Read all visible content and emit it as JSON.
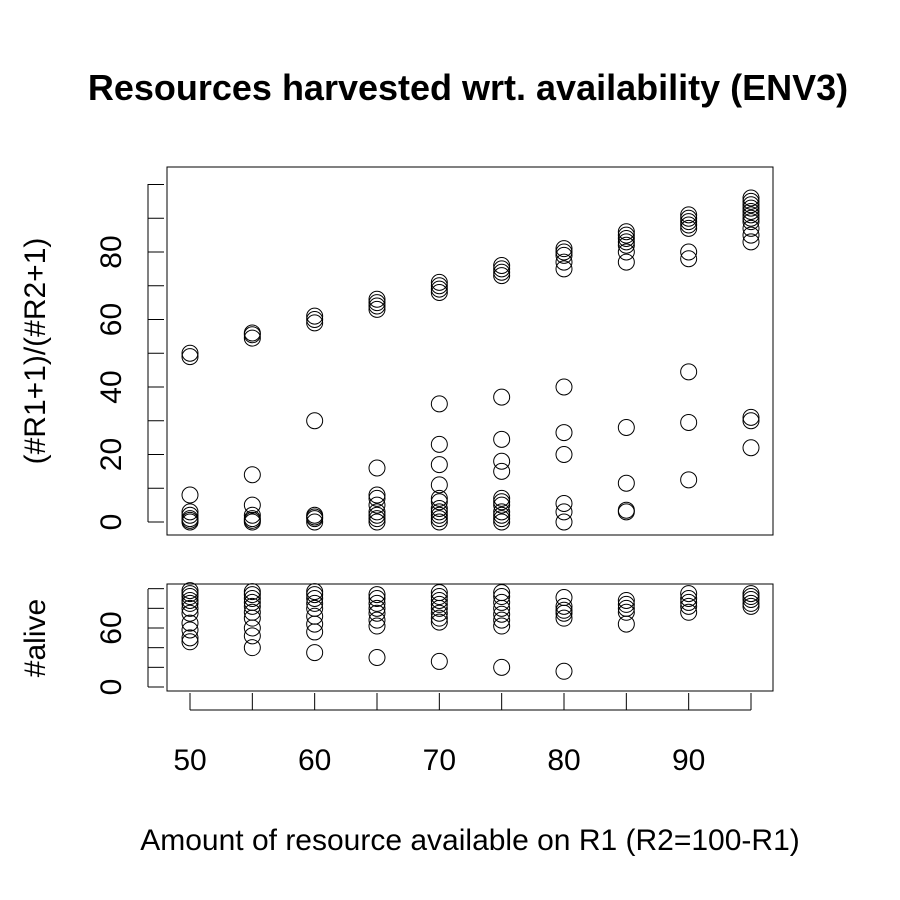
{
  "chart_data": {
    "type": "scatter",
    "title": "Resources harvested wrt. availability (ENV3)",
    "xlabel": "Amount of resource available on R1 (R2=100-R1)",
    "x_ticks": [
      50,
      60,
      70,
      80,
      90
    ],
    "panels": [
      {
        "name": "ratio",
        "ylabel": "(#R1+1)/(#R2+1)",
        "ylim": [
          -4,
          105
        ],
        "y_ticks": [
          0,
          20,
          40,
          60,
          80
        ],
        "y_minor_ticks": [
          10,
          30,
          50,
          70,
          90,
          100
        ],
        "points": [
          {
            "x": 50,
            "y": 49
          },
          {
            "x": 50,
            "y": 50
          },
          {
            "x": 50,
            "y": 8
          },
          {
            "x": 50,
            "y": 3
          },
          {
            "x": 50,
            "y": 2
          },
          {
            "x": 50,
            "y": 1
          },
          {
            "x": 50,
            "y": 0.5
          },
          {
            "x": 50,
            "y": 0
          },
          {
            "x": 55,
            "y": 54.5
          },
          {
            "x": 55,
            "y": 55.5
          },
          {
            "x": 55,
            "y": 56
          },
          {
            "x": 55,
            "y": 14
          },
          {
            "x": 55,
            "y": 5
          },
          {
            "x": 55,
            "y": 2
          },
          {
            "x": 55,
            "y": 1
          },
          {
            "x": 55,
            "y": 0.5
          },
          {
            "x": 55,
            "y": 0
          },
          {
            "x": 60,
            "y": 59
          },
          {
            "x": 60,
            "y": 60
          },
          {
            "x": 60,
            "y": 61
          },
          {
            "x": 60,
            "y": 30
          },
          {
            "x": 60,
            "y": 2
          },
          {
            "x": 60,
            "y": 1.5
          },
          {
            "x": 60,
            "y": 1
          },
          {
            "x": 60,
            "y": 0
          },
          {
            "x": 65,
            "y": 63
          },
          {
            "x": 65,
            "y": 64
          },
          {
            "x": 65,
            "y": 65
          },
          {
            "x": 65,
            "y": 66
          },
          {
            "x": 65,
            "y": 16
          },
          {
            "x": 65,
            "y": 8
          },
          {
            "x": 65,
            "y": 7
          },
          {
            "x": 65,
            "y": 5
          },
          {
            "x": 65,
            "y": 3
          },
          {
            "x": 65,
            "y": 2
          },
          {
            "x": 65,
            "y": 1
          },
          {
            "x": 65,
            "y": 0
          },
          {
            "x": 70,
            "y": 68
          },
          {
            "x": 70,
            "y": 69
          },
          {
            "x": 70,
            "y": 70
          },
          {
            "x": 70,
            "y": 71
          },
          {
            "x": 70,
            "y": 35
          },
          {
            "x": 70,
            "y": 23
          },
          {
            "x": 70,
            "y": 17
          },
          {
            "x": 70,
            "y": 11
          },
          {
            "x": 70,
            "y": 7
          },
          {
            "x": 70,
            "y": 6
          },
          {
            "x": 70,
            "y": 4
          },
          {
            "x": 70,
            "y": 3
          },
          {
            "x": 70,
            "y": 2
          },
          {
            "x": 70,
            "y": 1
          },
          {
            "x": 70,
            "y": 0
          },
          {
            "x": 75,
            "y": 73
          },
          {
            "x": 75,
            "y": 74
          },
          {
            "x": 75,
            "y": 75
          },
          {
            "x": 75,
            "y": 76
          },
          {
            "x": 75,
            "y": 37
          },
          {
            "x": 75,
            "y": 24.5
          },
          {
            "x": 75,
            "y": 18
          },
          {
            "x": 75,
            "y": 15
          },
          {
            "x": 75,
            "y": 7
          },
          {
            "x": 75,
            "y": 6
          },
          {
            "x": 75,
            "y": 5
          },
          {
            "x": 75,
            "y": 3
          },
          {
            "x": 75,
            "y": 2
          },
          {
            "x": 75,
            "y": 1
          },
          {
            "x": 75,
            "y": 0
          },
          {
            "x": 80,
            "y": 75
          },
          {
            "x": 80,
            "y": 77
          },
          {
            "x": 80,
            "y": 79
          },
          {
            "x": 80,
            "y": 80
          },
          {
            "x": 80,
            "y": 81
          },
          {
            "x": 80,
            "y": 40
          },
          {
            "x": 80,
            "y": 26.5
          },
          {
            "x": 80,
            "y": 20
          },
          {
            "x": 80,
            "y": 5.5
          },
          {
            "x": 80,
            "y": 3
          },
          {
            "x": 80,
            "y": 0
          },
          {
            "x": 85,
            "y": 77
          },
          {
            "x": 85,
            "y": 80
          },
          {
            "x": 85,
            "y": 82
          },
          {
            "x": 85,
            "y": 83
          },
          {
            "x": 85,
            "y": 84
          },
          {
            "x": 85,
            "y": 85
          },
          {
            "x": 85,
            "y": 86
          },
          {
            "x": 85,
            "y": 28
          },
          {
            "x": 85,
            "y": 11.5
          },
          {
            "x": 85,
            "y": 3.5
          },
          {
            "x": 85,
            "y": 3
          },
          {
            "x": 90,
            "y": 78
          },
          {
            "x": 90,
            "y": 80
          },
          {
            "x": 90,
            "y": 87
          },
          {
            "x": 90,
            "y": 88
          },
          {
            "x": 90,
            "y": 89
          },
          {
            "x": 90,
            "y": 90
          },
          {
            "x": 90,
            "y": 91
          },
          {
            "x": 90,
            "y": 44.5
          },
          {
            "x": 90,
            "y": 29.5
          },
          {
            "x": 90,
            "y": 12.5
          },
          {
            "x": 95,
            "y": 83
          },
          {
            "x": 95,
            "y": 85
          },
          {
            "x": 95,
            "y": 87
          },
          {
            "x": 95,
            "y": 89
          },
          {
            "x": 95,
            "y": 90
          },
          {
            "x": 95,
            "y": 91
          },
          {
            "x": 95,
            "y": 92
          },
          {
            "x": 95,
            "y": 93
          },
          {
            "x": 95,
            "y": 94
          },
          {
            "x": 95,
            "y": 95
          },
          {
            "x": 95,
            "y": 96
          },
          {
            "x": 95,
            "y": 31
          },
          {
            "x": 95,
            "y": 30
          },
          {
            "x": 95,
            "y": 22
          }
        ]
      },
      {
        "name": "alive",
        "ylabel": "#alive",
        "ylim": [
          -3,
          100
        ],
        "y_ticks": [
          0,
          60
        ],
        "y_minor_ticks": [
          20,
          40,
          80,
          100
        ],
        "points": [
          {
            "x": 50,
            "y": 98
          },
          {
            "x": 50,
            "y": 95
          },
          {
            "x": 50,
            "y": 92
          },
          {
            "x": 50,
            "y": 88
          },
          {
            "x": 50,
            "y": 85
          },
          {
            "x": 50,
            "y": 80
          },
          {
            "x": 50,
            "y": 75
          },
          {
            "x": 50,
            "y": 65
          },
          {
            "x": 50,
            "y": 58
          },
          {
            "x": 50,
            "y": 50
          },
          {
            "x": 50,
            "y": 46
          },
          {
            "x": 55,
            "y": 97
          },
          {
            "x": 55,
            "y": 94
          },
          {
            "x": 55,
            "y": 90
          },
          {
            "x": 55,
            "y": 86
          },
          {
            "x": 55,
            "y": 82
          },
          {
            "x": 55,
            "y": 76
          },
          {
            "x": 55,
            "y": 70
          },
          {
            "x": 55,
            "y": 60
          },
          {
            "x": 55,
            "y": 52
          },
          {
            "x": 55,
            "y": 40
          },
          {
            "x": 60,
            "y": 97
          },
          {
            "x": 60,
            "y": 94
          },
          {
            "x": 60,
            "y": 90
          },
          {
            "x": 60,
            "y": 85
          },
          {
            "x": 60,
            "y": 80
          },
          {
            "x": 60,
            "y": 72
          },
          {
            "x": 60,
            "y": 64
          },
          {
            "x": 60,
            "y": 56
          },
          {
            "x": 60,
            "y": 35
          },
          {
            "x": 65,
            "y": 94
          },
          {
            "x": 65,
            "y": 90
          },
          {
            "x": 65,
            "y": 85
          },
          {
            "x": 65,
            "y": 80
          },
          {
            "x": 65,
            "y": 75
          },
          {
            "x": 65,
            "y": 68
          },
          {
            "x": 65,
            "y": 62
          },
          {
            "x": 65,
            "y": 30
          },
          {
            "x": 70,
            "y": 96
          },
          {
            "x": 70,
            "y": 92
          },
          {
            "x": 70,
            "y": 88
          },
          {
            "x": 70,
            "y": 84
          },
          {
            "x": 70,
            "y": 80
          },
          {
            "x": 70,
            "y": 75
          },
          {
            "x": 70,
            "y": 70
          },
          {
            "x": 70,
            "y": 66
          },
          {
            "x": 70,
            "y": 26
          },
          {
            "x": 75,
            "y": 96
          },
          {
            "x": 75,
            "y": 92
          },
          {
            "x": 75,
            "y": 86
          },
          {
            "x": 75,
            "y": 80
          },
          {
            "x": 75,
            "y": 74
          },
          {
            "x": 75,
            "y": 68
          },
          {
            "x": 75,
            "y": 62
          },
          {
            "x": 75,
            "y": 20
          },
          {
            "x": 80,
            "y": 91
          },
          {
            "x": 80,
            "y": 82
          },
          {
            "x": 80,
            "y": 78
          },
          {
            "x": 80,
            "y": 75
          },
          {
            "x": 80,
            "y": 70
          },
          {
            "x": 80,
            "y": 16
          },
          {
            "x": 85,
            "y": 88
          },
          {
            "x": 85,
            "y": 84
          },
          {
            "x": 85,
            "y": 80
          },
          {
            "x": 85,
            "y": 76
          },
          {
            "x": 85,
            "y": 64
          },
          {
            "x": 90,
            "y": 95
          },
          {
            "x": 90,
            "y": 90
          },
          {
            "x": 90,
            "y": 86
          },
          {
            "x": 90,
            "y": 82
          },
          {
            "x": 90,
            "y": 76
          },
          {
            "x": 95,
            "y": 95
          },
          {
            "x": 95,
            "y": 92
          },
          {
            "x": 95,
            "y": 89
          },
          {
            "x": 95,
            "y": 85
          },
          {
            "x": 95,
            "y": 82
          }
        ]
      }
    ]
  }
}
